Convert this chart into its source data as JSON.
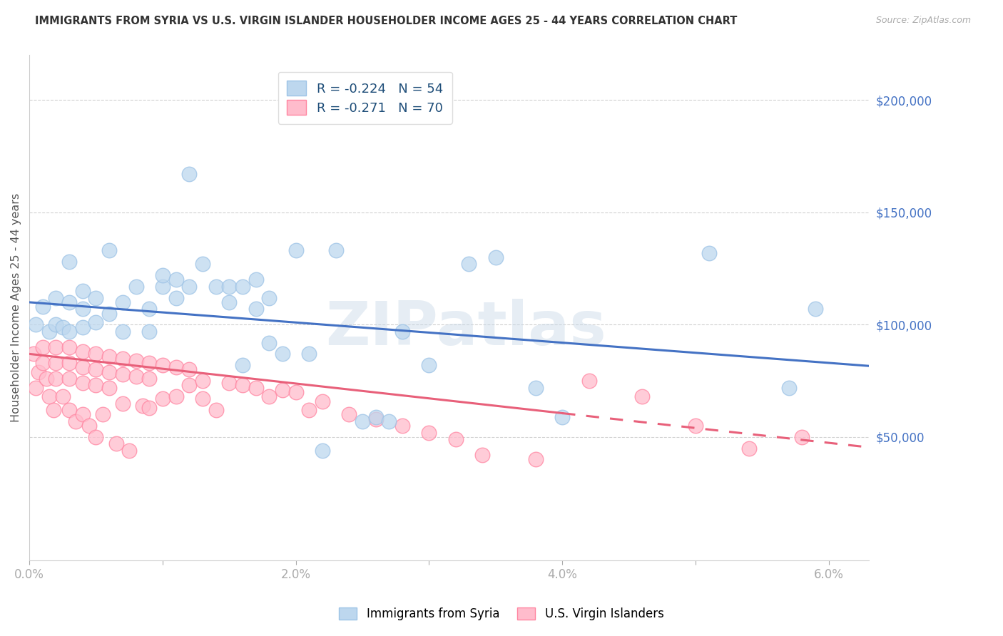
{
  "title": "IMMIGRANTS FROM SYRIA VS U.S. VIRGIN ISLANDER HOUSEHOLDER INCOME AGES 25 - 44 YEARS CORRELATION CHART",
  "source": "Source: ZipAtlas.com",
  "ylabel": "Householder Income Ages 25 - 44 years",
  "xlim": [
    0.0,
    0.063
  ],
  "ylim": [
    -5000,
    220000
  ],
  "xtick_vals": [
    0.0,
    0.01,
    0.02,
    0.03,
    0.04,
    0.05,
    0.06
  ],
  "xticklabels": [
    "0.0%",
    "",
    "2.0%",
    "",
    "4.0%",
    "",
    "6.0%"
  ],
  "yticks_right": [
    50000,
    100000,
    150000,
    200000
  ],
  "ytick_labels_right": [
    "$50,000",
    "$100,000",
    "$150,000",
    "$200,000"
  ],
  "legend_r_values": [
    "-0.224",
    "-0.271"
  ],
  "legend_n_values": [
    "54",
    "70"
  ],
  "watermark": "ZIPatlas",
  "blue_line_color": "#4472C4",
  "pink_line_color": "#E8607A",
  "blue_scatter_face": "#BDD7EE",
  "blue_scatter_edge": "#9DC3E6",
  "pink_scatter_face": "#FFBCCC",
  "pink_scatter_edge": "#FF85A1",
  "grid_color": "#cccccc",
  "background_color": "#ffffff",
  "blue_intercept": 110000,
  "blue_slope": -450000,
  "pink_intercept": 87000,
  "pink_slope": -660000,
  "syria_x": [
    0.0005,
    0.001,
    0.0015,
    0.002,
    0.002,
    0.0025,
    0.003,
    0.003,
    0.003,
    0.004,
    0.004,
    0.004,
    0.005,
    0.005,
    0.006,
    0.006,
    0.007,
    0.007,
    0.008,
    0.009,
    0.009,
    0.01,
    0.01,
    0.011,
    0.011,
    0.012,
    0.012,
    0.013,
    0.014,
    0.015,
    0.015,
    0.016,
    0.016,
    0.017,
    0.017,
    0.018,
    0.018,
    0.019,
    0.02,
    0.021,
    0.022,
    0.023,
    0.025,
    0.026,
    0.027,
    0.028,
    0.03,
    0.033,
    0.035,
    0.038,
    0.04,
    0.051,
    0.057,
    0.059
  ],
  "syria_y": [
    100000,
    108000,
    97000,
    112000,
    100000,
    99000,
    128000,
    110000,
    97000,
    115000,
    107000,
    99000,
    112000,
    101000,
    105000,
    133000,
    110000,
    97000,
    117000,
    107000,
    97000,
    117000,
    122000,
    112000,
    120000,
    117000,
    167000,
    127000,
    117000,
    117000,
    110000,
    82000,
    117000,
    120000,
    107000,
    112000,
    92000,
    87000,
    133000,
    87000,
    44000,
    133000,
    57000,
    59000,
    57000,
    97000,
    82000,
    127000,
    130000,
    72000,
    59000,
    132000,
    72000,
    107000
  ],
  "usvi_x": [
    0.0003,
    0.0005,
    0.0007,
    0.001,
    0.001,
    0.0013,
    0.0015,
    0.0018,
    0.002,
    0.002,
    0.002,
    0.0025,
    0.003,
    0.003,
    0.003,
    0.003,
    0.0035,
    0.004,
    0.004,
    0.004,
    0.004,
    0.0045,
    0.005,
    0.005,
    0.005,
    0.005,
    0.0055,
    0.006,
    0.006,
    0.006,
    0.0065,
    0.007,
    0.007,
    0.007,
    0.0075,
    0.008,
    0.008,
    0.0085,
    0.009,
    0.009,
    0.009,
    0.01,
    0.01,
    0.011,
    0.011,
    0.012,
    0.012,
    0.013,
    0.013,
    0.014,
    0.015,
    0.016,
    0.017,
    0.018,
    0.019,
    0.02,
    0.021,
    0.022,
    0.024,
    0.026,
    0.028,
    0.03,
    0.032,
    0.034,
    0.038,
    0.042,
    0.046,
    0.05,
    0.054,
    0.058
  ],
  "usvi_y": [
    87000,
    72000,
    79000,
    90000,
    83000,
    76000,
    68000,
    62000,
    90000,
    83000,
    76000,
    68000,
    90000,
    83000,
    76000,
    62000,
    57000,
    88000,
    81000,
    74000,
    60000,
    55000,
    87000,
    80000,
    73000,
    50000,
    60000,
    86000,
    79000,
    72000,
    47000,
    85000,
    78000,
    65000,
    44000,
    84000,
    77000,
    64000,
    83000,
    76000,
    63000,
    82000,
    67000,
    81000,
    68000,
    80000,
    73000,
    67000,
    75000,
    62000,
    74000,
    73000,
    72000,
    68000,
    71000,
    70000,
    62000,
    66000,
    60000,
    58000,
    55000,
    52000,
    49000,
    42000,
    40000,
    75000,
    68000,
    55000,
    45000,
    50000
  ]
}
